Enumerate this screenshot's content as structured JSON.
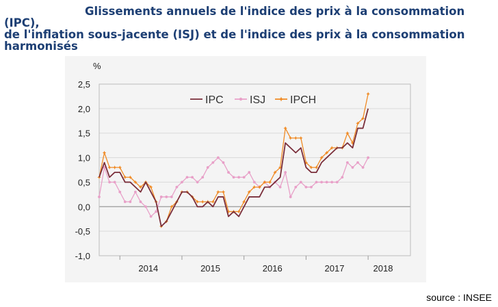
{
  "title": {
    "line1": "Glissements annuels de l'indice des prix à la consommation (IPC),",
    "line2": "de l'inflation sous-jacente (ISJ)        et de l'indice des prix à la consommation",
    "line3": "harmonisés"
  },
  "source": "source : INSEE",
  "chart_data": {
    "type": "line",
    "ylabel": "%",
    "ylim": [
      -1.0,
      2.5
    ],
    "yticks": [
      "-1,0",
      "-0,5",
      "0,0",
      "0,5",
      "1,0",
      "1,5",
      "2,0",
      "2,5"
    ],
    "ytick_values": [
      -1.0,
      -0.5,
      0.0,
      0.5,
      1.0,
      1.5,
      2.0,
      2.5
    ],
    "xtick_labels": [
      "2014",
      "2015",
      "2016",
      "2017",
      "2018"
    ],
    "x_start": "2013-09",
    "grid": "horizontal",
    "legend_position": "top",
    "series": [
      {
        "name": "IPC",
        "color": "#7a2e3a",
        "marker": "none",
        "values": [
          0.6,
          0.9,
          0.6,
          0.7,
          0.7,
          0.5,
          0.5,
          0.4,
          0.3,
          0.5,
          0.3,
          0.1,
          -0.4,
          -0.3,
          -0.1,
          0.1,
          0.3,
          0.3,
          0.2,
          0.0,
          0.0,
          0.1,
          0.0,
          0.2,
          0.2,
          -0.2,
          -0.1,
          -0.2,
          0.0,
          0.2,
          0.2,
          0.2,
          0.4,
          0.4,
          0.5,
          0.6,
          1.3,
          1.2,
          1.1,
          1.2,
          0.8,
          0.7,
          0.7,
          0.9,
          1.0,
          1.1,
          1.2,
          1.2,
          1.3,
          1.2,
          1.6,
          1.6,
          2.0
        ]
      },
      {
        "name": "ISJ",
        "color": "#e8a0c8",
        "marker": "dot",
        "values": [
          0.2,
          0.8,
          0.5,
          0.5,
          0.3,
          0.1,
          0.1,
          0.3,
          0.1,
          0.0,
          -0.2,
          -0.1,
          0.2,
          0.2,
          0.2,
          0.4,
          0.5,
          0.6,
          0.6,
          0.5,
          0.6,
          0.8,
          0.9,
          1.0,
          0.9,
          0.7,
          0.6,
          0.6,
          0.6,
          0.7,
          0.5,
          0.4,
          0.5,
          0.4,
          0.5,
          0.4,
          0.7,
          0.2,
          0.4,
          0.5,
          0.4,
          0.4,
          0.5,
          0.5,
          0.5,
          0.5,
          0.5,
          0.6,
          0.9,
          0.8,
          0.9,
          0.8,
          1.0
        ]
      },
      {
        "name": "IPCH",
        "color": "#f08a24",
        "marker": "star",
        "values": [
          0.6,
          1.1,
          0.8,
          0.8,
          0.8,
          0.6,
          0.6,
          0.5,
          0.4,
          0.5,
          0.4,
          0.1,
          -0.4,
          -0.3,
          0.0,
          0.1,
          0.3,
          0.3,
          0.2,
          0.1,
          0.1,
          0.1,
          0.1,
          0.3,
          0.3,
          -0.1,
          -0.1,
          -0.1,
          0.1,
          0.3,
          0.4,
          0.4,
          0.5,
          0.5,
          0.7,
          0.8,
          1.6,
          1.4,
          1.4,
          1.4,
          0.9,
          0.8,
          0.8,
          1.0,
          1.1,
          1.2,
          1.2,
          1.2,
          1.5,
          1.3,
          1.7,
          1.8,
          2.3
        ]
      }
    ]
  }
}
